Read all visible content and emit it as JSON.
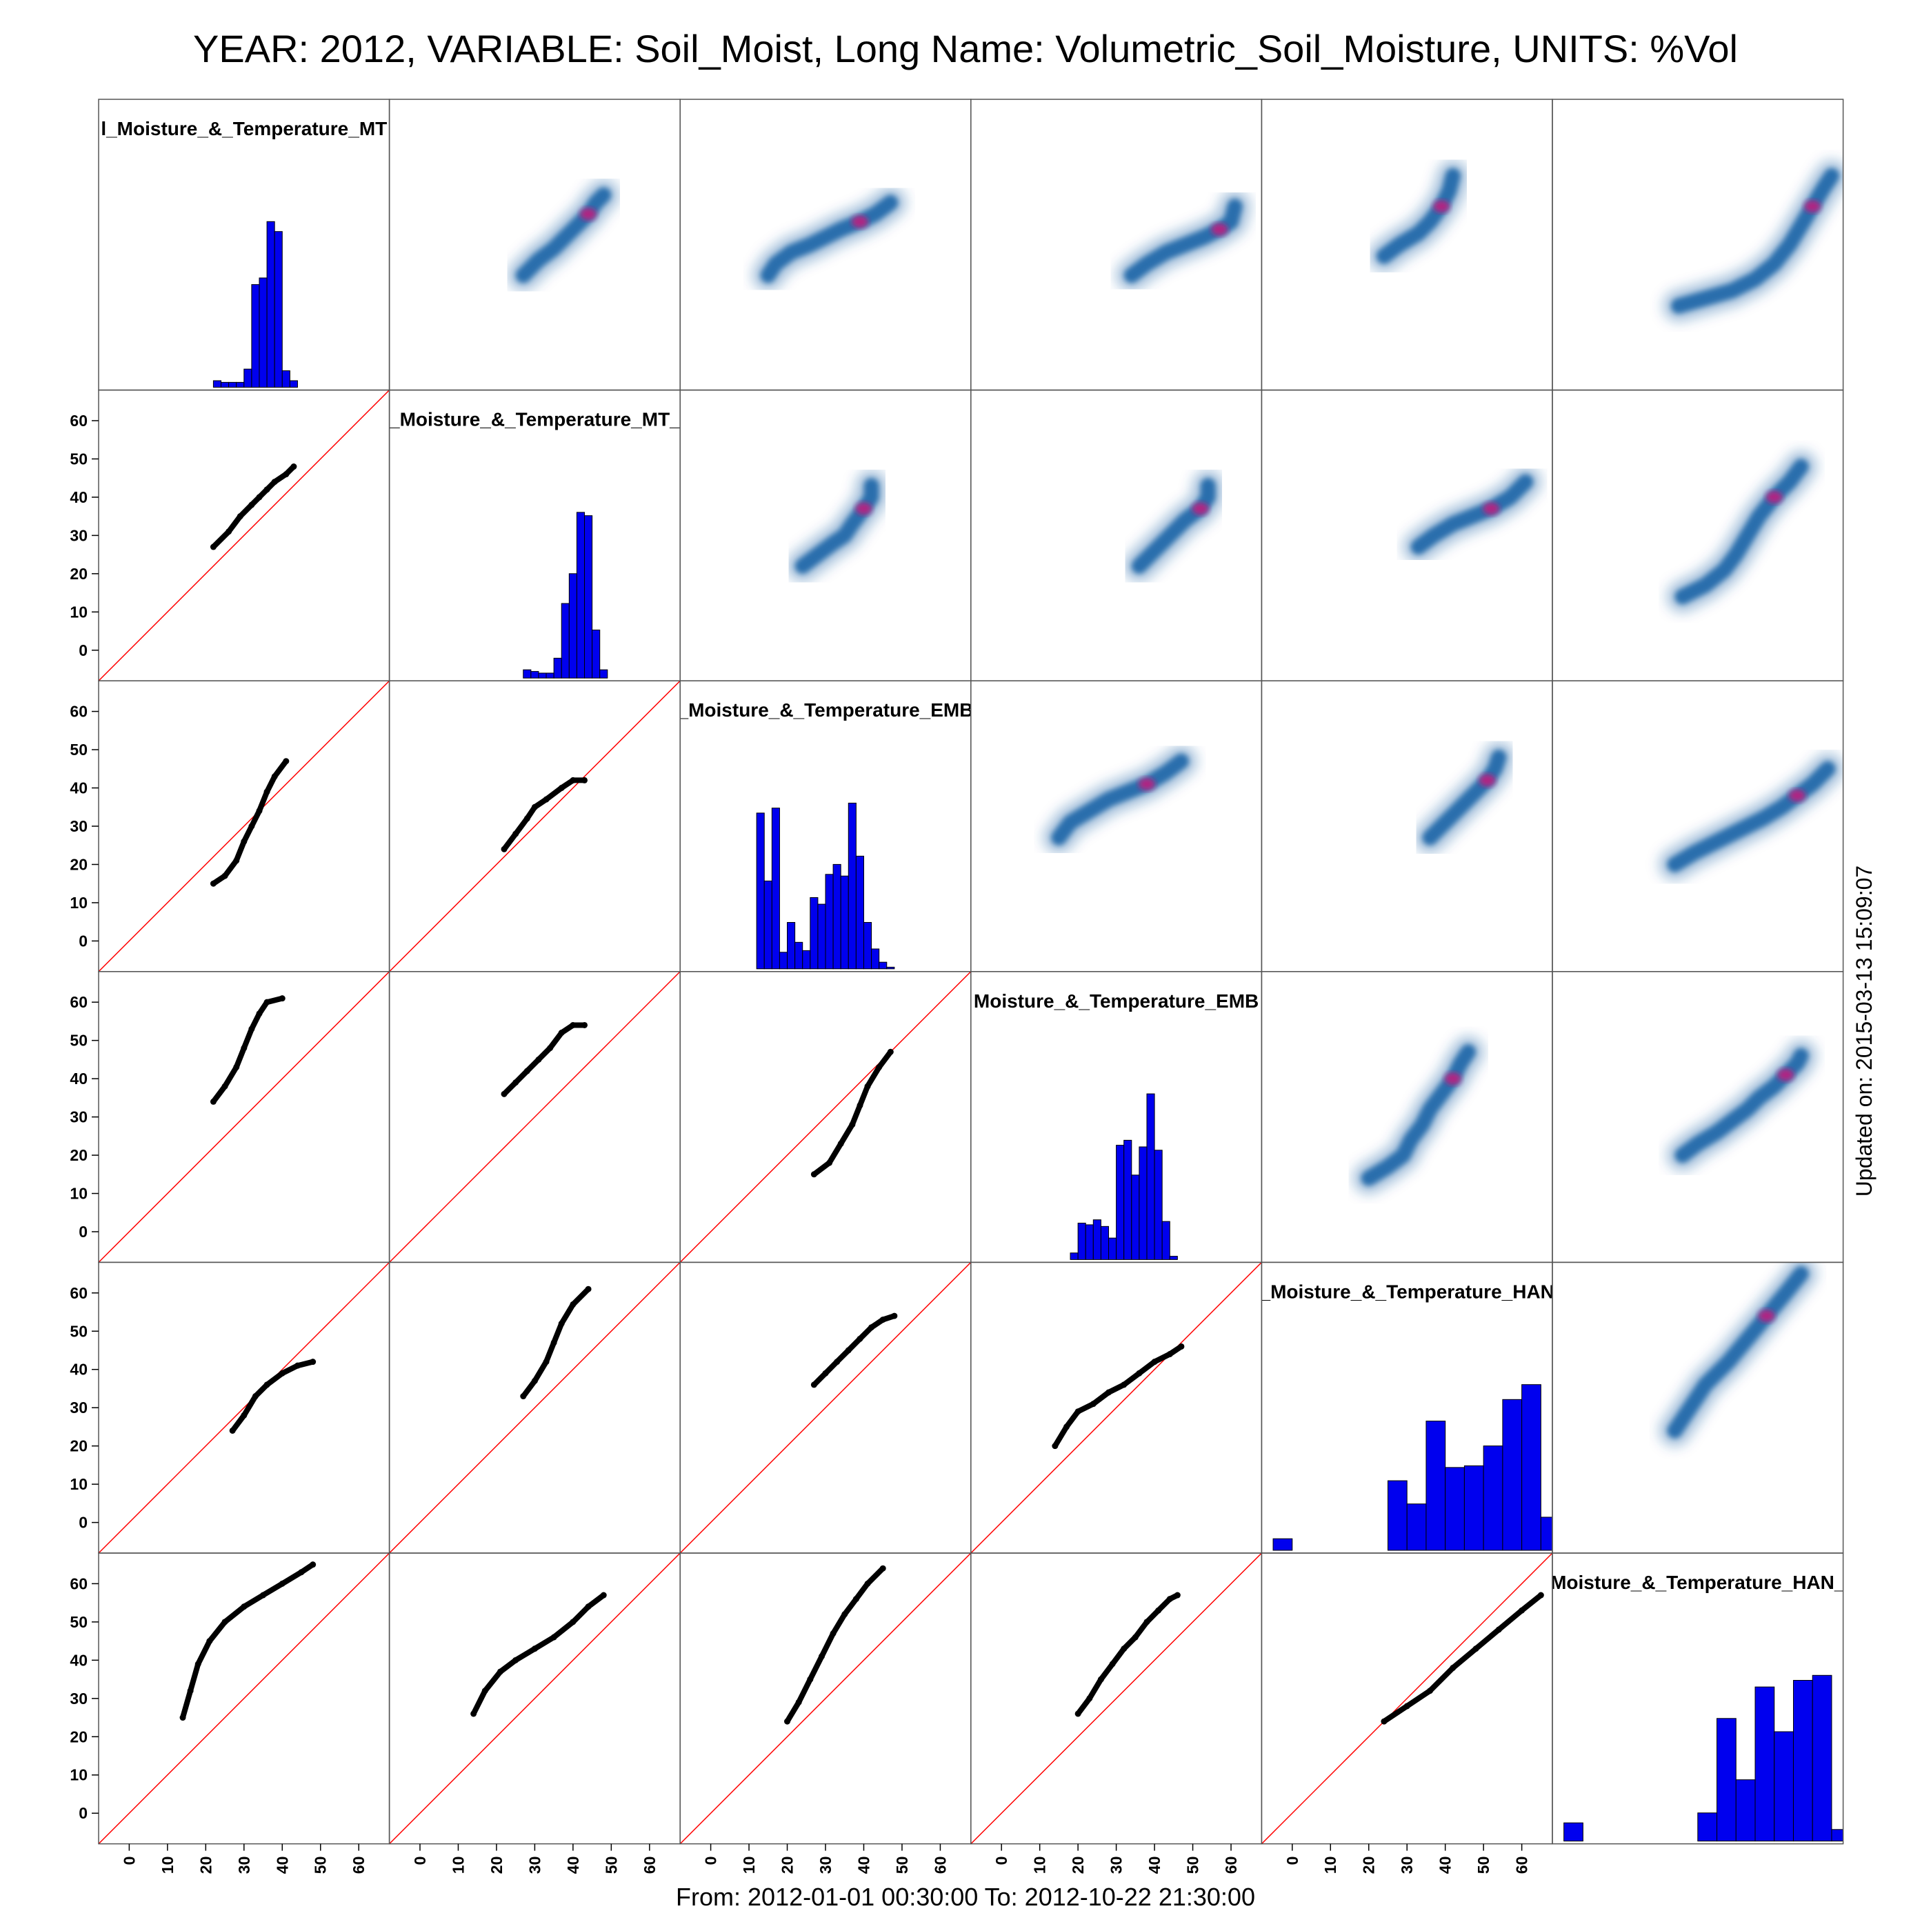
{
  "page": {
    "title": "YEAR: 2012, VARIABLE: Soil_Moist, Long Name: Volumetric_Soil_Moisture, UNITS: %Vol",
    "footer": "From: 2012-01-01 00:30:00 To: 2012-10-22 21:30:00",
    "updated": "Updated on: 2015-03-13 15:09:07"
  },
  "colors": {
    "histogram": "#0000ee",
    "points": "#000000",
    "identity_line": "#ff0000",
    "density": "#08519c",
    "density_peak": "#c51b7d"
  },
  "chart_data": {
    "type": "scatter",
    "layout": "scatterplot matrix: histograms on diagonal, scatter below, density above",
    "axis_range": [
      -8,
      68
    ],
    "ticks": [
      0,
      10,
      20,
      30,
      40,
      50,
      60
    ],
    "tick_labels": [
      "0",
      "10",
      "20",
      "30",
      "40",
      "50",
      "60"
    ],
    "diagonal_labels": [
      "l_Moisture_&_Temperature_MT",
      "_Moisture_&_Temperature_MT_",
      "_Moisture_&_Temperature_EMB",
      "Moisture_&_Temperature_EMB",
      "_Moisture_&_Temperature_HAN",
      "Moisture_&_Temperature_HAN_"
    ],
    "series_paths": [
      [
        [
          22,
          27
        ],
        [
          26,
          31
        ],
        [
          29,
          35
        ],
        [
          32,
          38
        ],
        [
          34,
          40
        ],
        [
          36,
          42
        ],
        [
          38,
          44
        ],
        [
          41,
          46
        ],
        [
          43,
          48
        ]
      ],
      [
        [
          22,
          15
        ],
        [
          25,
          17
        ],
        [
          28,
          21
        ],
        [
          30,
          26
        ],
        [
          32,
          30
        ],
        [
          34,
          34
        ],
        [
          36,
          39
        ],
        [
          38,
          43
        ],
        [
          41,
          47
        ]
      ],
      [
        [
          22,
          24
        ],
        [
          25,
          28
        ],
        [
          28,
          32
        ],
        [
          30,
          35
        ],
        [
          33,
          37
        ],
        [
          37,
          40
        ],
        [
          40,
          42
        ],
        [
          43,
          42
        ]
      ],
      [
        [
          22,
          34
        ],
        [
          25,
          38
        ],
        [
          28,
          43
        ],
        [
          30,
          48
        ],
        [
          32,
          53
        ],
        [
          34,
          57
        ],
        [
          36,
          60
        ],
        [
          40,
          61
        ]
      ],
      [
        [
          22,
          36
        ],
        [
          25,
          39
        ],
        [
          28,
          42
        ],
        [
          31,
          45
        ],
        [
          34,
          48
        ],
        [
          37,
          52
        ],
        [
          40,
          54
        ],
        [
          43,
          54
        ]
      ],
      [
        [
          27,
          15
        ],
        [
          31,
          18
        ],
        [
          34,
          23
        ],
        [
          37,
          28
        ],
        [
          39,
          33
        ],
        [
          41,
          38
        ],
        [
          44,
          43
        ],
        [
          47,
          47
        ]
      ],
      [
        [
          27,
          24
        ],
        [
          30,
          28
        ],
        [
          33,
          33
        ],
        [
          36,
          36
        ],
        [
          40,
          39
        ],
        [
          44,
          41
        ],
        [
          48,
          42
        ]
      ],
      [
        [
          27,
          33
        ],
        [
          30,
          37
        ],
        [
          33,
          42
        ],
        [
          35,
          47
        ],
        [
          37,
          52
        ],
        [
          40,
          57
        ],
        [
          44,
          61
        ]
      ],
      [
        [
          27,
          36
        ],
        [
          30,
          39
        ],
        [
          33,
          42
        ],
        [
          36,
          45
        ],
        [
          39,
          48
        ],
        [
          42,
          51
        ],
        [
          45,
          53
        ],
        [
          48,
          54
        ]
      ],
      [
        [
          14,
          20
        ],
        [
          17,
          25
        ],
        [
          20,
          29
        ],
        [
          24,
          31
        ],
        [
          28,
          34
        ],
        [
          32,
          36
        ],
        [
          36,
          39
        ],
        [
          40,
          42
        ],
        [
          44,
          44
        ],
        [
          47,
          46
        ]
      ],
      [
        [
          14,
          25
        ],
        [
          16,
          32
        ],
        [
          18,
          39
        ],
        [
          21,
          45
        ],
        [
          25,
          50
        ],
        [
          30,
          54
        ],
        [
          35,
          57
        ],
        [
          40,
          60
        ],
        [
          45,
          63
        ],
        [
          48,
          65
        ]
      ],
      [
        [
          14,
          26
        ],
        [
          17,
          32
        ],
        [
          21,
          37
        ],
        [
          25,
          40
        ],
        [
          30,
          43
        ],
        [
          35,
          46
        ],
        [
          40,
          50
        ],
        [
          44,
          54
        ],
        [
          48,
          57
        ]
      ],
      [
        [
          20,
          24
        ],
        [
          23,
          29
        ],
        [
          26,
          35
        ],
        [
          29,
          41
        ],
        [
          32,
          47
        ],
        [
          35,
          52
        ],
        [
          38,
          56
        ],
        [
          41,
          60
        ],
        [
          45,
          64
        ]
      ],
      [
        [
          20,
          26
        ],
        [
          23,
          30
        ],
        [
          26,
          35
        ],
        [
          29,
          39
        ],
        [
          32,
          43
        ],
        [
          35,
          46
        ],
        [
          38,
          50
        ],
        [
          41,
          53
        ],
        [
          44,
          56
        ],
        [
          46,
          57
        ]
      ],
      [
        [
          24,
          24
        ],
        [
          30,
          28
        ],
        [
          36,
          32
        ],
        [
          42,
          38
        ],
        [
          48,
          43
        ],
        [
          54,
          48
        ],
        [
          60,
          53
        ],
        [
          65,
          57
        ]
      ]
    ],
    "histograms": [
      {
        "start": 22,
        "width": 2,
        "counts": [
          4,
          3,
          3,
          3,
          11,
          62,
          66,
          100,
          94,
          10,
          4
        ]
      },
      {
        "start": 27,
        "width": 2,
        "counts": [
          5,
          4,
          3,
          3,
          12,
          45,
          63,
          100,
          98,
          29,
          5
        ]
      },
      {
        "start": 12,
        "width": 2,
        "counts": [
          94,
          53,
          97,
          10,
          28,
          16,
          11,
          43,
          39,
          57,
          63,
          56,
          100,
          68,
          28,
          12,
          4,
          1
        ]
      },
      {
        "start": 18,
        "width": 2,
        "counts": [
          4,
          22,
          21,
          24,
          20,
          13,
          69,
          72,
          51,
          68,
          100,
          66,
          23,
          2
        ]
      },
      {
        "start": -5,
        "width": 5,
        "counts": [
          7,
          0,
          0,
          0,
          0,
          0,
          42,
          28,
          78,
          50,
          51,
          63,
          91,
          100,
          20
        ]
      },
      {
        "start": -5,
        "width": 5,
        "counts": [
          11,
          0,
          0,
          0,
          0,
          0,
          0,
          17,
          74,
          37,
          93,
          66,
          97,
          100,
          7
        ]
      }
    ]
  }
}
